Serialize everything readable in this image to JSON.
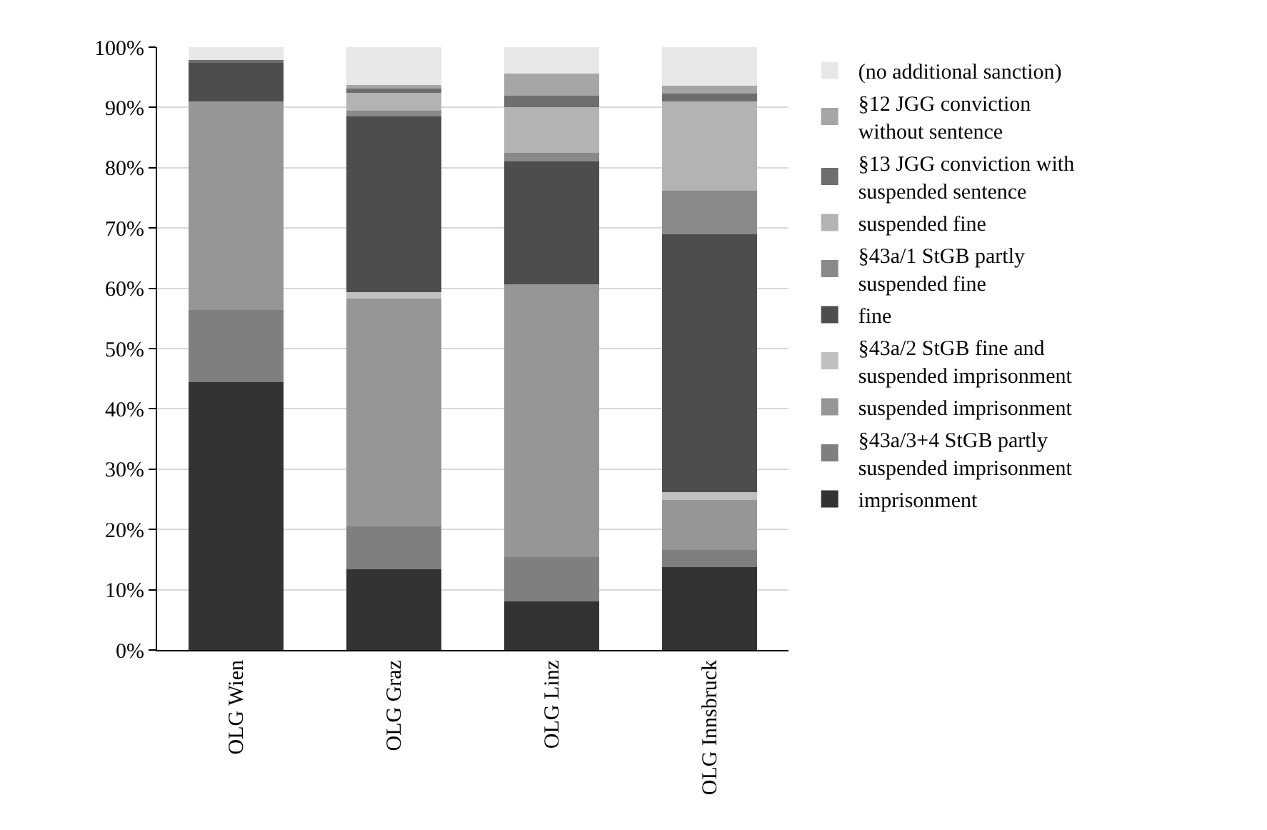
{
  "chart_data": {
    "type": "bar",
    "stacked": true,
    "categories": [
      "OLG Wien",
      "OLG Graz",
      "OLG Linz",
      "OLG Innsbruck"
    ],
    "ylim": [
      0,
      100
    ],
    "yticks": [
      {
        "value": 0,
        "label": "0%"
      },
      {
        "value": 10,
        "label": "10%"
      },
      {
        "value": 20,
        "label": "20%"
      },
      {
        "value": 30,
        "label": "30%"
      },
      {
        "value": 40,
        "label": "40%"
      },
      {
        "value": 50,
        "label": "50%"
      },
      {
        "value": 60,
        "label": "60%"
      },
      {
        "value": 70,
        "label": "70%"
      },
      {
        "value": 80,
        "label": "80%"
      },
      {
        "value": 90,
        "label": "90%"
      },
      {
        "value": 100,
        "label": "100%"
      }
    ],
    "grid": "y",
    "legend": "right",
    "series": [
      {
        "name": "imprisonment",
        "color": "#333333",
        "values": [
          44.4,
          13.4,
          8.0,
          13.8
        ]
      },
      {
        "name": "§43a/3+4 StGB partly suspended imprisonment",
        "color": "#7f7f7f",
        "values": [
          12.0,
          7.1,
          7.4,
          2.8
        ]
      },
      {
        "name": "suspended imprisonment",
        "color": "#969696",
        "values": [
          34.6,
          37.8,
          45.3,
          8.3
        ]
      },
      {
        "name": "§43a/2 StGB fine and suspended imprisonment",
        "color": "#c0c0c0",
        "values": [
          0,
          1.1,
          0,
          1.3
        ]
      },
      {
        "name": "fine",
        "color": "#4d4d4d",
        "values": [
          6.6,
          29.1,
          20.3,
          42.7
        ]
      },
      {
        "name": "§43a/1 StGB partly suspended fine",
        "color": "#8a8a8a",
        "values": [
          0,
          0.9,
          1.5,
          7.3
        ]
      },
      {
        "name": "suspended fine",
        "color": "#b3b3b3",
        "values": [
          0,
          3.0,
          7.5,
          14.8
        ]
      },
      {
        "name": "§13 JGG conviction with suspended sentence",
        "color": "#6e6e6e",
        "values": [
          0.3,
          0.7,
          2.0,
          1.3
        ]
      },
      {
        "name": "§12 JGG conviction without sentence",
        "color": "#a6a6a6",
        "values": [
          0,
          0.6,
          3.6,
          1.3
        ]
      },
      {
        "name": "(no additional sanction)",
        "color": "#e8e8e8",
        "values": [
          2.1,
          6.3,
          4.4,
          6.4
        ]
      }
    ]
  }
}
